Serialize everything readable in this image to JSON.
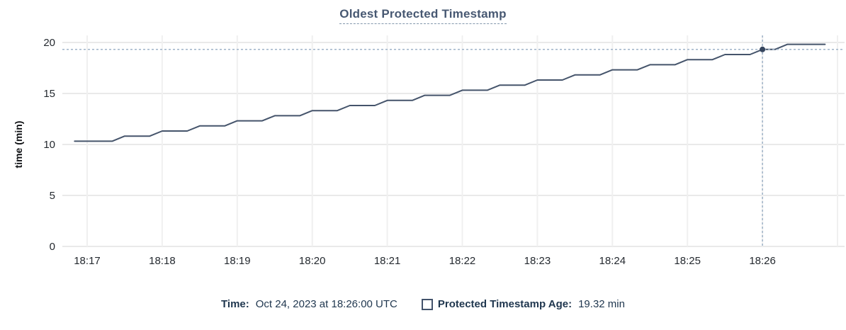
{
  "title": "Oldest Protected Timestamp",
  "chart_data": {
    "type": "line",
    "title": "Oldest Protected Timestamp",
    "xlabel": "",
    "ylabel": "time (min)",
    "ylim": [
      0,
      20
    ],
    "y_ticks": [
      0,
      5,
      10,
      15,
      20
    ],
    "x_ticks": [
      "18:17",
      "18:18",
      "18:19",
      "18:20",
      "18:21",
      "18:22",
      "18:23",
      "18:24",
      "18:25",
      "18:26"
    ],
    "grid": true,
    "legend_position": "bottom",
    "series": [
      {
        "name": "Protected Timestamp Age",
        "unit": "min",
        "times": [
          "18:16:50",
          "18:17:00",
          "18:17:10",
          "18:17:20",
          "18:17:30",
          "18:17:40",
          "18:17:50",
          "18:18:00",
          "18:18:10",
          "18:18:20",
          "18:18:30",
          "18:18:40",
          "18:18:50",
          "18:19:00",
          "18:19:10",
          "18:19:20",
          "18:19:30",
          "18:19:40",
          "18:19:50",
          "18:20:00",
          "18:20:10",
          "18:20:20",
          "18:20:30",
          "18:20:40",
          "18:20:50",
          "18:21:00",
          "18:21:10",
          "18:21:20",
          "18:21:30",
          "18:21:40",
          "18:21:50",
          "18:22:00",
          "18:22:10",
          "18:22:20",
          "18:22:30",
          "18:22:40",
          "18:22:50",
          "18:23:00",
          "18:23:10",
          "18:23:20",
          "18:23:30",
          "18:23:40",
          "18:23:50",
          "18:24:00",
          "18:24:10",
          "18:24:20",
          "18:24:30",
          "18:24:40",
          "18:24:50",
          "18:25:00",
          "18:25:10",
          "18:25:20",
          "18:25:30",
          "18:25:40",
          "18:25:50",
          "18:26:00",
          "18:26:10",
          "18:26:20",
          "18:26:30",
          "18:26:40",
          "18:26:50"
        ],
        "values": [
          10.32,
          10.32,
          10.32,
          10.32,
          10.82,
          10.82,
          10.82,
          11.32,
          11.32,
          11.32,
          11.82,
          11.82,
          11.82,
          12.32,
          12.32,
          12.32,
          12.82,
          12.82,
          12.82,
          13.32,
          13.32,
          13.32,
          13.82,
          13.82,
          13.82,
          14.32,
          14.32,
          14.32,
          14.82,
          14.82,
          14.82,
          15.32,
          15.32,
          15.32,
          15.82,
          15.82,
          15.82,
          16.32,
          16.32,
          16.32,
          16.82,
          16.82,
          16.82,
          17.32,
          17.32,
          17.32,
          17.82,
          17.82,
          17.82,
          18.32,
          18.32,
          18.32,
          18.82,
          18.82,
          18.82,
          19.32,
          19.32,
          19.82,
          19.82,
          19.82,
          19.82
        ]
      }
    ],
    "hover": {
      "time": "18:26:00",
      "value": 19.32
    },
    "colors": {
      "line": "#45546B",
      "marker": "#36455E",
      "crosshair": "#9FB3C8",
      "grid_h": "#E9E9E9",
      "grid_v": "#F0F0F0",
      "title": "#475872",
      "tick_text": "#24292F",
      "legend_text": "#1F364E"
    }
  },
  "legend": {
    "time_label": "Time:",
    "time_value": "Oct 24, 2023 at 18:26:00 UTC",
    "series_label": "Protected Timestamp Age:",
    "series_value": "19.32 min"
  }
}
